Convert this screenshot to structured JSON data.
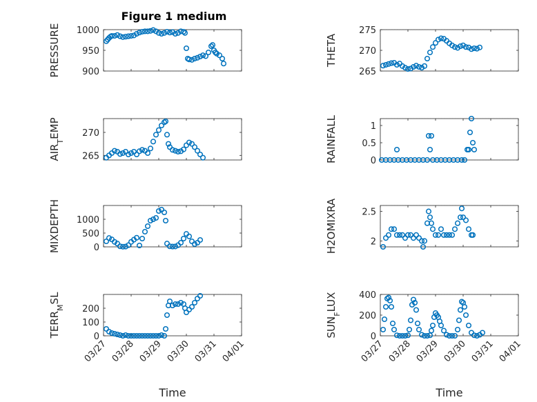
{
  "title": "Figure 1 medium",
  "colors": {
    "marker": "#0072BD"
  },
  "chart_data": [
    {
      "type": "scatter",
      "ylabel": "PRESSURE",
      "ylim": [
        900,
        1000
      ],
      "yticks": [
        900,
        950,
        1000
      ],
      "grid": true,
      "points": [
        [
          0.1,
          972
        ],
        [
          0.15,
          976
        ],
        [
          0.2,
          980
        ],
        [
          0.25,
          983
        ],
        [
          0.3,
          985
        ],
        [
          0.4,
          985
        ],
        [
          0.5,
          987
        ],
        [
          0.6,
          984
        ],
        [
          0.7,
          982
        ],
        [
          0.8,
          983
        ],
        [
          0.9,
          984
        ],
        [
          1.0,
          985
        ],
        [
          1.1,
          986
        ],
        [
          1.2,
          990
        ],
        [
          1.3,
          993
        ],
        [
          1.4,
          995
        ],
        [
          1.5,
          996
        ],
        [
          1.6,
          996
        ],
        [
          1.7,
          997
        ],
        [
          1.8,
          999
        ],
        [
          1.9,
          996
        ],
        [
          2.0,
          992
        ],
        [
          2.1,
          990
        ],
        [
          2.2,
          992
        ],
        [
          2.3,
          995
        ],
        [
          2.4,
          993
        ],
        [
          2.5,
          994
        ],
        [
          2.6,
          990
        ],
        [
          2.7,
          992
        ],
        [
          2.8,
          996
        ],
        [
          2.9,
          995
        ],
        [
          2.95,
          992
        ],
        [
          3.0,
          955
        ],
        [
          3.05,
          930
        ],
        [
          3.1,
          928
        ],
        [
          3.2,
          927
        ],
        [
          3.3,
          930
        ],
        [
          3.4,
          932
        ],
        [
          3.5,
          935
        ],
        [
          3.6,
          938
        ],
        [
          3.7,
          936
        ],
        [
          3.8,
          945
        ],
        [
          3.9,
          960
        ],
        [
          3.95,
          963
        ],
        [
          4.0,
          950
        ],
        [
          4.05,
          945
        ],
        [
          4.1,
          942
        ],
        [
          4.2,
          938
        ],
        [
          4.3,
          930
        ],
        [
          4.35,
          918
        ]
      ]
    },
    {
      "type": "scatter",
      "ylabel": "THETA",
      "ylim": [
        265,
        275
      ],
      "yticks": [
        265,
        270,
        275
      ],
      "grid": true,
      "points": [
        [
          0.1,
          266.3
        ],
        [
          0.2,
          266.5
        ],
        [
          0.3,
          266.7
        ],
        [
          0.4,
          266.9
        ],
        [
          0.5,
          267.0
        ],
        [
          0.6,
          266.5
        ],
        [
          0.7,
          266.8
        ],
        [
          0.8,
          266.2
        ],
        [
          0.9,
          265.8
        ],
        [
          1.0,
          265.5
        ],
        [
          1.1,
          265.6
        ],
        [
          1.2,
          266.0
        ],
        [
          1.3,
          266.3
        ],
        [
          1.4,
          266.0
        ],
        [
          1.5,
          265.8
        ],
        [
          1.6,
          266.2
        ],
        [
          1.7,
          268.0
        ],
        [
          1.8,
          269.5
        ],
        [
          1.9,
          270.8
        ],
        [
          2.0,
          271.8
        ],
        [
          2.1,
          272.6
        ],
        [
          2.2,
          272.9
        ],
        [
          2.3,
          272.8
        ],
        [
          2.4,
          272.3
        ],
        [
          2.5,
          271.7
        ],
        [
          2.6,
          271.2
        ],
        [
          2.7,
          270.8
        ],
        [
          2.8,
          270.6
        ],
        [
          2.9,
          271.0
        ],
        [
          3.0,
          271.2
        ],
        [
          3.1,
          270.8
        ],
        [
          3.2,
          270.7
        ],
        [
          3.3,
          270.3
        ],
        [
          3.4,
          270.5
        ],
        [
          3.5,
          270.4
        ],
        [
          3.6,
          270.7
        ]
      ]
    },
    {
      "type": "scatter",
      "ylabel": "AIR_TEMP",
      "ylim": [
        264,
        273
      ],
      "yticks": [
        265,
        270
      ],
      "grid": true,
      "points": [
        [
          0.1,
          264.5
        ],
        [
          0.2,
          265.0
        ],
        [
          0.3,
          265.5
        ],
        [
          0.4,
          266.0
        ],
        [
          0.5,
          265.8
        ],
        [
          0.6,
          265.3
        ],
        [
          0.7,
          265.5
        ],
        [
          0.8,
          265.8
        ],
        [
          0.9,
          265.2
        ],
        [
          1.0,
          265.5
        ],
        [
          1.1,
          265.8
        ],
        [
          1.2,
          265.2
        ],
        [
          1.3,
          265.9
        ],
        [
          1.4,
          266.2
        ],
        [
          1.5,
          266.0
        ],
        [
          1.6,
          265.5
        ],
        [
          1.7,
          266.5
        ],
        [
          1.8,
          268.0
        ],
        [
          1.9,
          269.5
        ],
        [
          2.0,
          270.5
        ],
        [
          2.1,
          271.5
        ],
        [
          2.2,
          272.2
        ],
        [
          2.25,
          272.4
        ],
        [
          2.3,
          269.5
        ],
        [
          2.35,
          267.5
        ],
        [
          2.4,
          266.8
        ],
        [
          2.5,
          266.2
        ],
        [
          2.6,
          266.0
        ],
        [
          2.7,
          265.8
        ],
        [
          2.8,
          265.9
        ],
        [
          2.9,
          266.3
        ],
        [
          3.0,
          267.2
        ],
        [
          3.1,
          267.8
        ],
        [
          3.2,
          267.5
        ],
        [
          3.3,
          266.8
        ],
        [
          3.4,
          266.0
        ],
        [
          3.5,
          265.2
        ],
        [
          3.6,
          264.5
        ]
      ]
    },
    {
      "type": "scatter",
      "ylabel": "RAINFALL",
      "ylim": [
        0,
        1.2
      ],
      "yticks": [
        0,
        0.5,
        1
      ],
      "ytickLabels": [
        "0",
        "0.5",
        "1"
      ],
      "grid": true,
      "points": [
        [
          0.05,
          0
        ],
        [
          0.2,
          0
        ],
        [
          0.35,
          0
        ],
        [
          0.5,
          0
        ],
        [
          0.6,
          0.3
        ],
        [
          0.65,
          0
        ],
        [
          0.8,
          0
        ],
        [
          0.95,
          0
        ],
        [
          1.1,
          0
        ],
        [
          1.25,
          0
        ],
        [
          1.4,
          0
        ],
        [
          1.55,
          0
        ],
        [
          1.7,
          0
        ],
        [
          1.75,
          0.7
        ],
        [
          1.8,
          0.3
        ],
        [
          1.85,
          0.7
        ],
        [
          1.9,
          0
        ],
        [
          2.05,
          0
        ],
        [
          2.2,
          0
        ],
        [
          2.35,
          0
        ],
        [
          2.5,
          0
        ],
        [
          2.65,
          0
        ],
        [
          2.8,
          0
        ],
        [
          2.95,
          0
        ],
        [
          3.05,
          0
        ],
        [
          3.15,
          0.3
        ],
        [
          3.2,
          0.3
        ],
        [
          3.25,
          0.8
        ],
        [
          3.3,
          1.2
        ],
        [
          3.35,
          0.5
        ],
        [
          3.4,
          0.3
        ]
      ]
    },
    {
      "type": "scatter",
      "ylabel": "MIXDEPTH",
      "ylim": [
        0,
        1500
      ],
      "yticks": [
        0,
        500,
        1000
      ],
      "grid": true,
      "points": [
        [
          0.1,
          200
        ],
        [
          0.2,
          320
        ],
        [
          0.3,
          270
        ],
        [
          0.4,
          180
        ],
        [
          0.5,
          120
        ],
        [
          0.6,
          20
        ],
        [
          0.7,
          5
        ],
        [
          0.8,
          10
        ],
        [
          0.9,
          60
        ],
        [
          1.0,
          180
        ],
        [
          1.1,
          260
        ],
        [
          1.2,
          330
        ],
        [
          1.3,
          50
        ],
        [
          1.4,
          300
        ],
        [
          1.5,
          550
        ],
        [
          1.6,
          750
        ],
        [
          1.7,
          950
        ],
        [
          1.8,
          1000
        ],
        [
          1.9,
          1050
        ],
        [
          2.0,
          1300
        ],
        [
          2.1,
          1350
        ],
        [
          2.2,
          1250
        ],
        [
          2.25,
          950
        ],
        [
          2.3,
          120
        ],
        [
          2.4,
          20
        ],
        [
          2.5,
          10
        ],
        [
          2.6,
          15
        ],
        [
          2.7,
          60
        ],
        [
          2.8,
          150
        ],
        [
          2.9,
          300
        ],
        [
          3.0,
          470
        ],
        [
          3.1,
          380
        ],
        [
          3.2,
          200
        ],
        [
          3.3,
          100
        ],
        [
          3.4,
          150
        ],
        [
          3.5,
          250
        ]
      ]
    },
    {
      "type": "scatter",
      "ylabel": "H2OMIXRA",
      "ylim": [
        1.9,
        2.6
      ],
      "yticks": [
        2,
        2.5
      ],
      "ytickLabels": [
        "2",
        "2.5"
      ],
      "grid": true,
      "points": [
        [
          0.1,
          1.9
        ],
        [
          0.2,
          2.05
        ],
        [
          0.3,
          2.1
        ],
        [
          0.4,
          2.2
        ],
        [
          0.5,
          2.2
        ],
        [
          0.6,
          2.1
        ],
        [
          0.7,
          2.1
        ],
        [
          0.8,
          2.1
        ],
        [
          0.9,
          2.05
        ],
        [
          1.0,
          2.1
        ],
        [
          1.1,
          2.1
        ],
        [
          1.2,
          2.05
        ],
        [
          1.3,
          2.1
        ],
        [
          1.4,
          2.05
        ],
        [
          1.5,
          2.0
        ],
        [
          1.55,
          1.9
        ],
        [
          1.6,
          2.0
        ],
        [
          1.7,
          2.3
        ],
        [
          1.75,
          2.5
        ],
        [
          1.8,
          2.4
        ],
        [
          1.85,
          2.3
        ],
        [
          1.9,
          2.2
        ],
        [
          2.0,
          2.1
        ],
        [
          2.1,
          2.1
        ],
        [
          2.2,
          2.2
        ],
        [
          2.3,
          2.1
        ],
        [
          2.4,
          2.1
        ],
        [
          2.5,
          2.1
        ],
        [
          2.6,
          2.1
        ],
        [
          2.7,
          2.2
        ],
        [
          2.8,
          2.3
        ],
        [
          2.9,
          2.4
        ],
        [
          2.95,
          2.55
        ],
        [
          3.0,
          2.4
        ],
        [
          3.1,
          2.35
        ],
        [
          3.2,
          2.2
        ],
        [
          3.3,
          2.1
        ],
        [
          3.35,
          2.1
        ]
      ]
    },
    {
      "type": "scatter",
      "ylabel": "TERR_MSL",
      "ylim": [
        0,
        300
      ],
      "yticks": [
        0,
        100,
        200
      ],
      "grid": true,
      "points": [
        [
          0.1,
          50
        ],
        [
          0.2,
          30
        ],
        [
          0.3,
          20
        ],
        [
          0.4,
          15
        ],
        [
          0.5,
          10
        ],
        [
          0.6,
          5
        ],
        [
          0.7,
          0
        ],
        [
          0.8,
          5
        ],
        [
          0.9,
          0
        ],
        [
          1.0,
          0
        ],
        [
          1.1,
          0
        ],
        [
          1.2,
          0
        ],
        [
          1.3,
          0
        ],
        [
          1.4,
          0
        ],
        [
          1.5,
          0
        ],
        [
          1.6,
          0
        ],
        [
          1.7,
          0
        ],
        [
          1.8,
          0
        ],
        [
          1.9,
          0
        ],
        [
          2.0,
          0
        ],
        [
          2.1,
          5
        ],
        [
          2.2,
          0
        ],
        [
          2.25,
          50
        ],
        [
          2.3,
          150
        ],
        [
          2.35,
          220
        ],
        [
          2.4,
          250
        ],
        [
          2.5,
          220
        ],
        [
          2.6,
          230
        ],
        [
          2.7,
          230
        ],
        [
          2.8,
          240
        ],
        [
          2.9,
          230
        ],
        [
          2.95,
          200
        ],
        [
          3.0,
          170
        ],
        [
          3.1,
          190
        ],
        [
          3.2,
          210
        ],
        [
          3.3,
          240
        ],
        [
          3.4,
          270
        ],
        [
          3.5,
          290
        ]
      ]
    },
    {
      "type": "scatter",
      "ylabel": "SUN_FLUX",
      "ylim": [
        0,
        400
      ],
      "yticks": [
        0,
        200,
        400
      ],
      "grid": true,
      "points": [
        [
          0.1,
          60
        ],
        [
          0.15,
          160
        ],
        [
          0.2,
          280
        ],
        [
          0.25,
          360
        ],
        [
          0.3,
          370
        ],
        [
          0.35,
          340
        ],
        [
          0.4,
          280
        ],
        [
          0.45,
          120
        ],
        [
          0.5,
          60
        ],
        [
          0.6,
          5
        ],
        [
          0.7,
          0
        ],
        [
          0.8,
          0
        ],
        [
          0.9,
          0
        ],
        [
          1.0,
          5
        ],
        [
          1.05,
          60
        ],
        [
          1.1,
          150
        ],
        [
          1.15,
          300
        ],
        [
          1.2,
          350
        ],
        [
          1.25,
          320
        ],
        [
          1.3,
          250
        ],
        [
          1.35,
          120
        ],
        [
          1.4,
          60
        ],
        [
          1.5,
          10
        ],
        [
          1.6,
          0
        ],
        [
          1.7,
          0
        ],
        [
          1.8,
          5
        ],
        [
          1.85,
          50
        ],
        [
          1.9,
          100
        ],
        [
          1.95,
          180
        ],
        [
          2.0,
          220
        ],
        [
          2.05,
          200
        ],
        [
          2.1,
          180
        ],
        [
          2.15,
          140
        ],
        [
          2.2,
          100
        ],
        [
          2.3,
          50
        ],
        [
          2.4,
          10
        ],
        [
          2.5,
          0
        ],
        [
          2.6,
          0
        ],
        [
          2.7,
          0
        ],
        [
          2.8,
          60
        ],
        [
          2.85,
          150
        ],
        [
          2.9,
          250
        ],
        [
          2.95,
          330
        ],
        [
          3.0,
          320
        ],
        [
          3.05,
          280
        ],
        [
          3.1,
          200
        ],
        [
          3.2,
          100
        ],
        [
          3.3,
          30
        ],
        [
          3.4,
          5
        ],
        [
          3.5,
          0
        ],
        [
          3.6,
          10
        ],
        [
          3.7,
          30
        ]
      ]
    }
  ],
  "xaxis": {
    "label": "Time",
    "ticks": [
      "03/27",
      "03/28",
      "03/29",
      "03/30",
      "03/31",
      "04/01"
    ],
    "range": [
      0,
      5
    ]
  }
}
